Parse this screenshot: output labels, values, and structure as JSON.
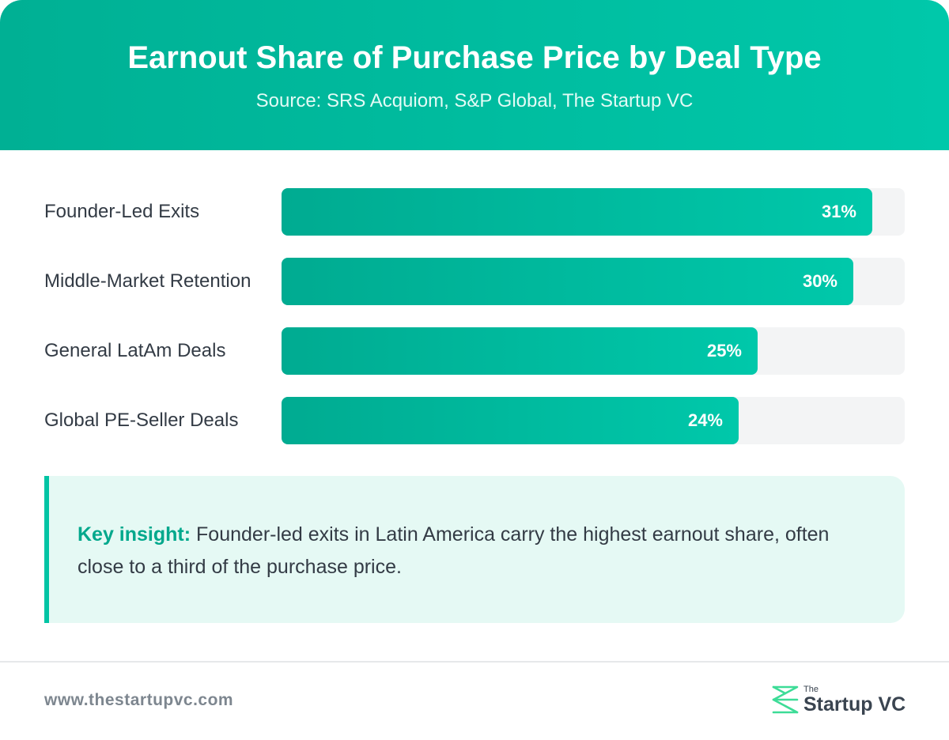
{
  "header": {
    "title": "Earnout Share of Purchase Price by Deal Type",
    "subtitle": "Source: SRS Acquiom, S&P Global, The Startup VC"
  },
  "chart_data": {
    "type": "bar",
    "orientation": "horizontal",
    "title": "Earnout Share of Purchase Price by Deal Type",
    "subtitle": "Source: SRS Acquiom, S&P Global, The Startup VC",
    "categories": [
      "Founder-Led Exits",
      "Middle-Market Retention",
      "General LatAm Deals",
      "Global PE-Seller Deals"
    ],
    "values": [
      31,
      30,
      25,
      24
    ],
    "value_labels": [
      "31%",
      "30%",
      "25%",
      "24%"
    ],
    "unit": "%",
    "xlim": [
      0,
      32.7
    ],
    "grid": false,
    "colors": {
      "bar_start": "#00ab91",
      "bar_end": "#00c8aa",
      "track": "#f3f4f5"
    }
  },
  "insight": {
    "label": "Key insight:",
    "text": " Founder-led exits in Latin America carry the highest earnout share, often close to a third of the purchase price."
  },
  "footer": {
    "url": "www.thestartupvc.com",
    "logo_small": "The",
    "logo_main": "Startup VC"
  },
  "colors": {
    "accent": "#00c4a4",
    "header_gradient_start": "#00b094",
    "header_gradient_end": "#00c8aa",
    "insight_background": "#e5f9f4",
    "text": "#333b45"
  }
}
